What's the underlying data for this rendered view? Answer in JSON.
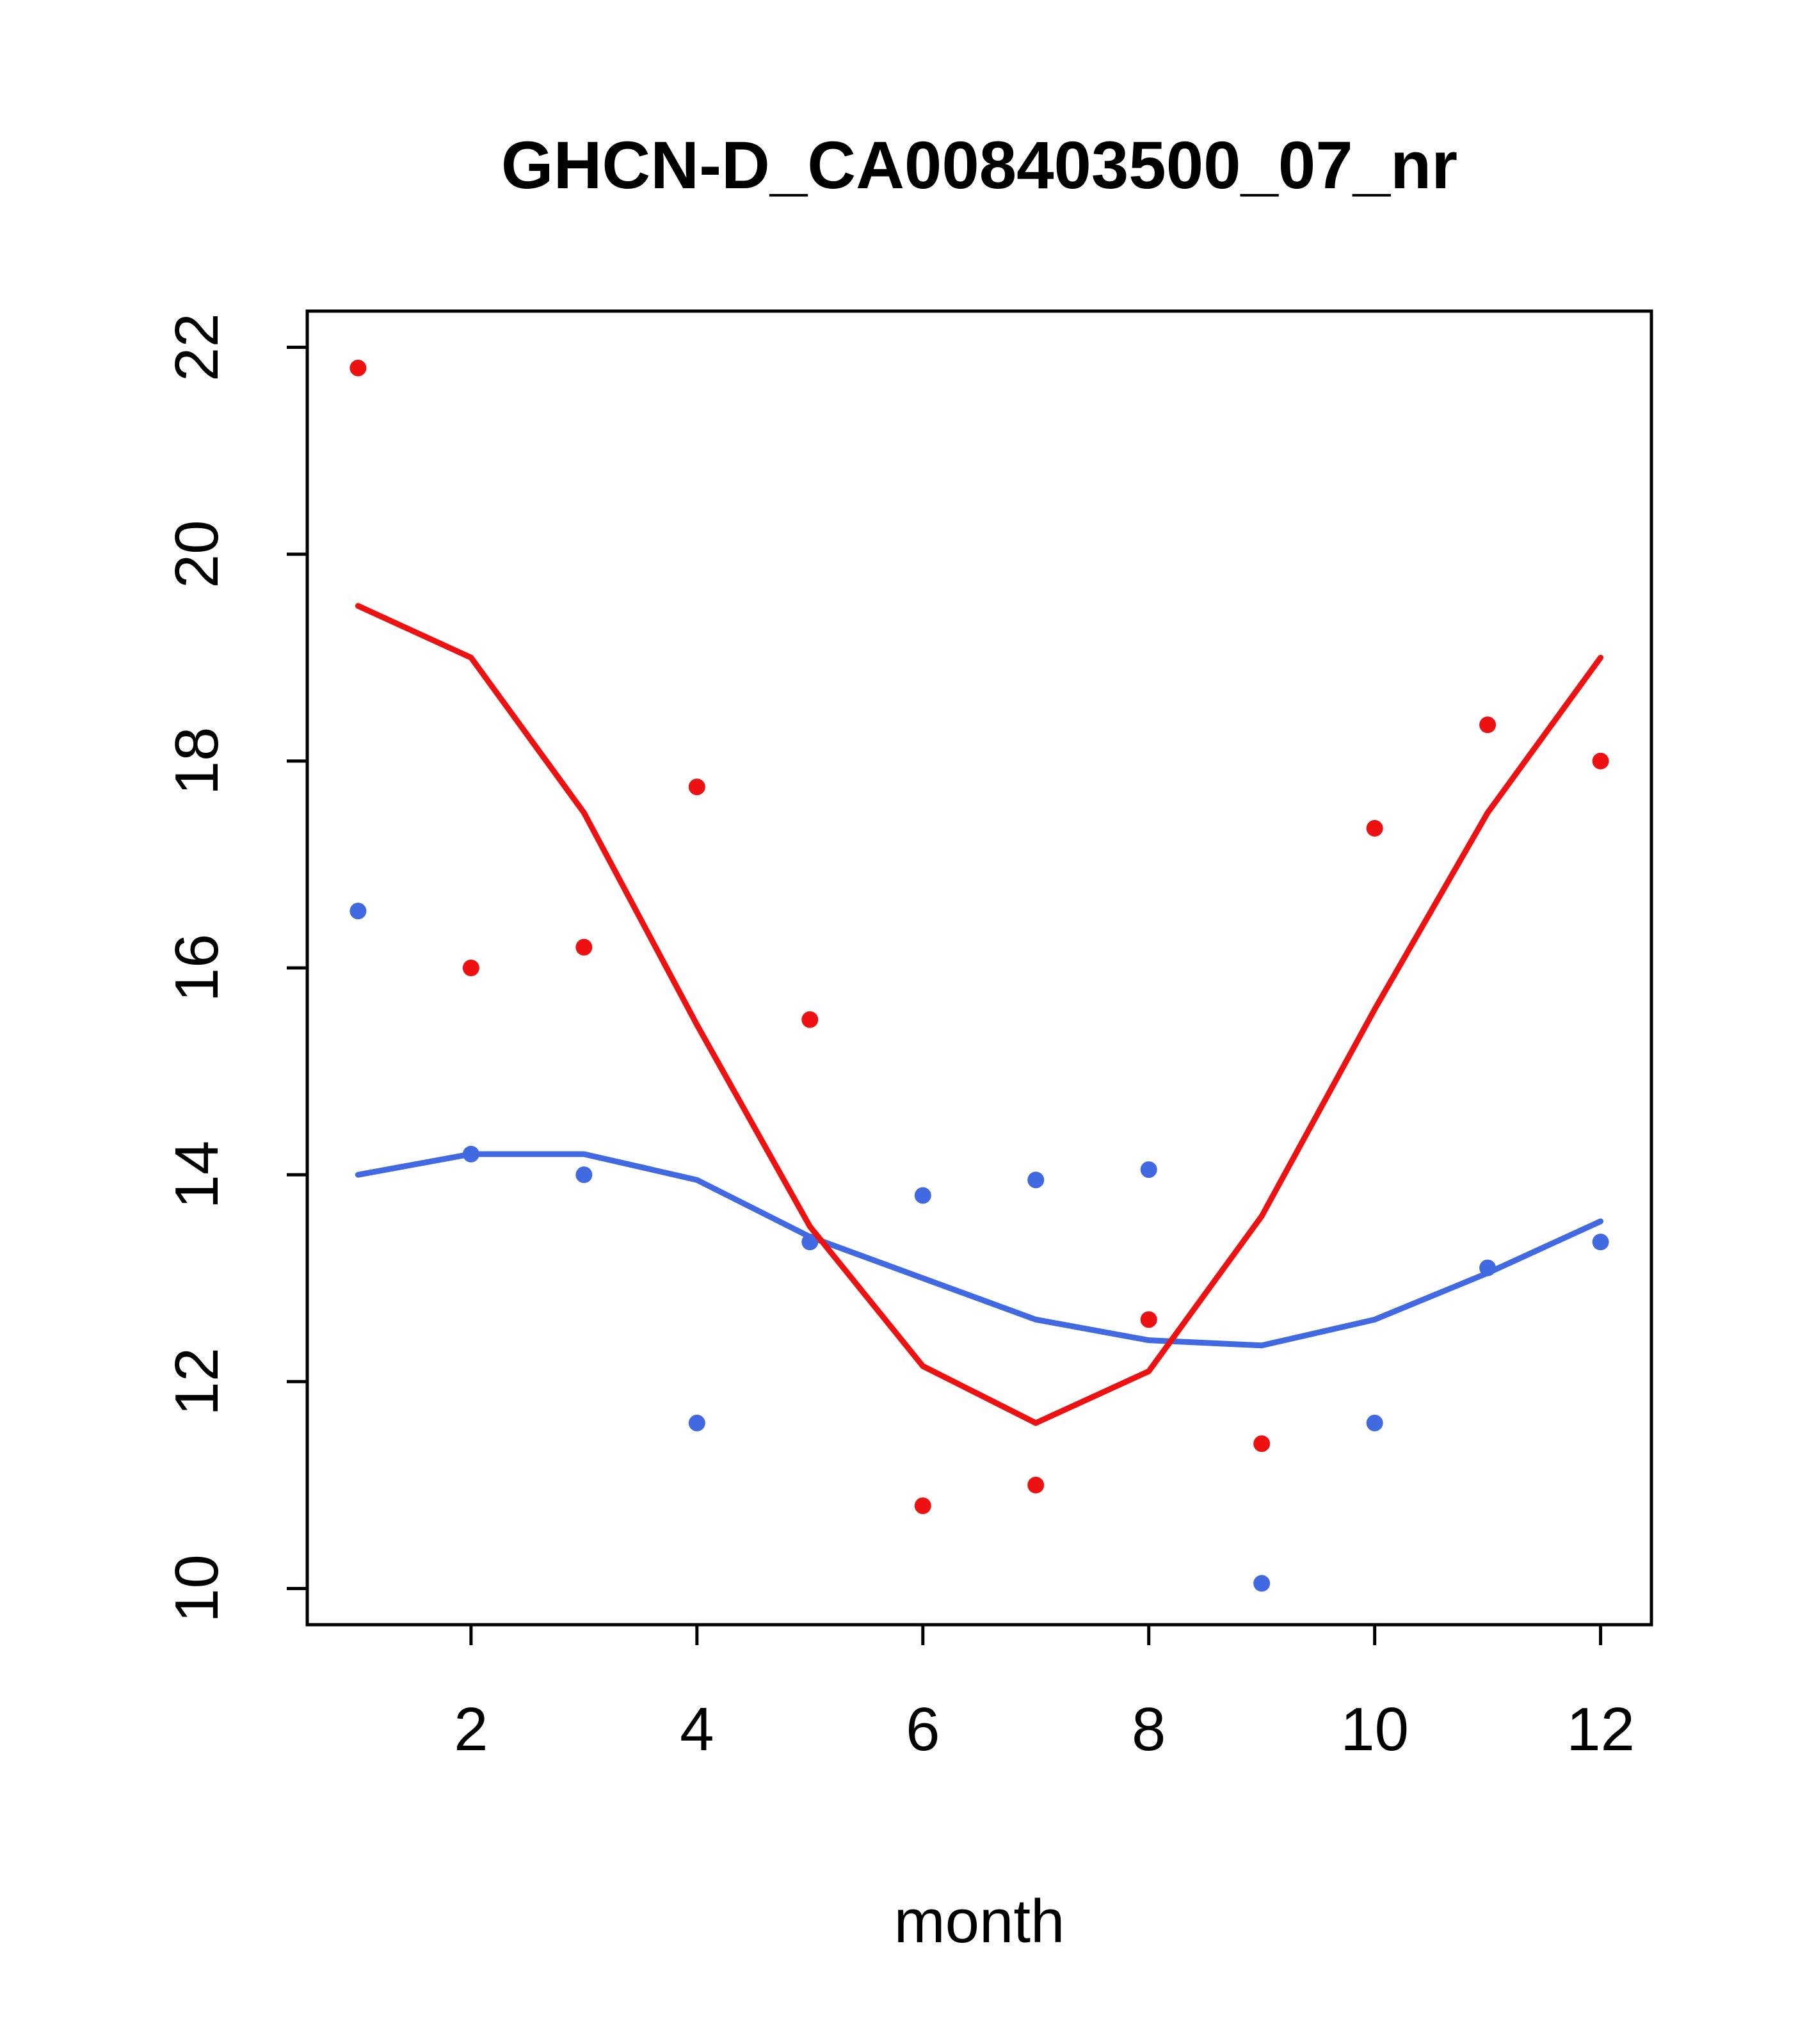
{
  "chart_data": {
    "type": "scatter",
    "title": "GHCN-D_CA008403500_07_nr",
    "xlabel": "month",
    "ylabel": "",
    "x": [
      1,
      2,
      3,
      4,
      5,
      6,
      7,
      8,
      9,
      10,
      11,
      12
    ],
    "xticks": [
      2,
      4,
      6,
      8,
      10,
      12
    ],
    "yticks": [
      10,
      12,
      14,
      16,
      18,
      20,
      22
    ],
    "xlim": [
      0.55,
      12.45
    ],
    "ylim": [
      9.65,
      22.35
    ],
    "grid": false,
    "legend": "none",
    "colors": {
      "red": "#ee1111",
      "blue": "#4169e1"
    },
    "series": [
      {
        "name": "blue-points",
        "type": "points",
        "color": "#4169e1",
        "values": [
          16.55,
          14.2,
          14.0,
          11.6,
          13.35,
          13.8,
          13.95,
          14.05,
          10.05,
          11.6,
          13.1,
          13.35
        ]
      },
      {
        "name": "blue-line",
        "type": "line",
        "color": "#4169e1",
        "values": [
          14.0,
          14.2,
          14.2,
          13.95,
          13.4,
          13.0,
          12.6,
          12.4,
          12.35,
          12.6,
          13.05,
          13.55
        ]
      },
      {
        "name": "red-points",
        "type": "points",
        "color": "#ee1111",
        "values": [
          21.8,
          16.0,
          16.2,
          17.75,
          15.5,
          10.8,
          11.0,
          12.6,
          11.4,
          17.35,
          18.35,
          18.0
        ]
      },
      {
        "name": "red-line",
        "type": "line",
        "color": "#ee1111",
        "values": [
          19.5,
          19.0,
          17.5,
          15.45,
          13.5,
          12.15,
          11.6,
          12.1,
          13.6,
          15.6,
          17.5,
          19.0
        ]
      }
    ]
  }
}
